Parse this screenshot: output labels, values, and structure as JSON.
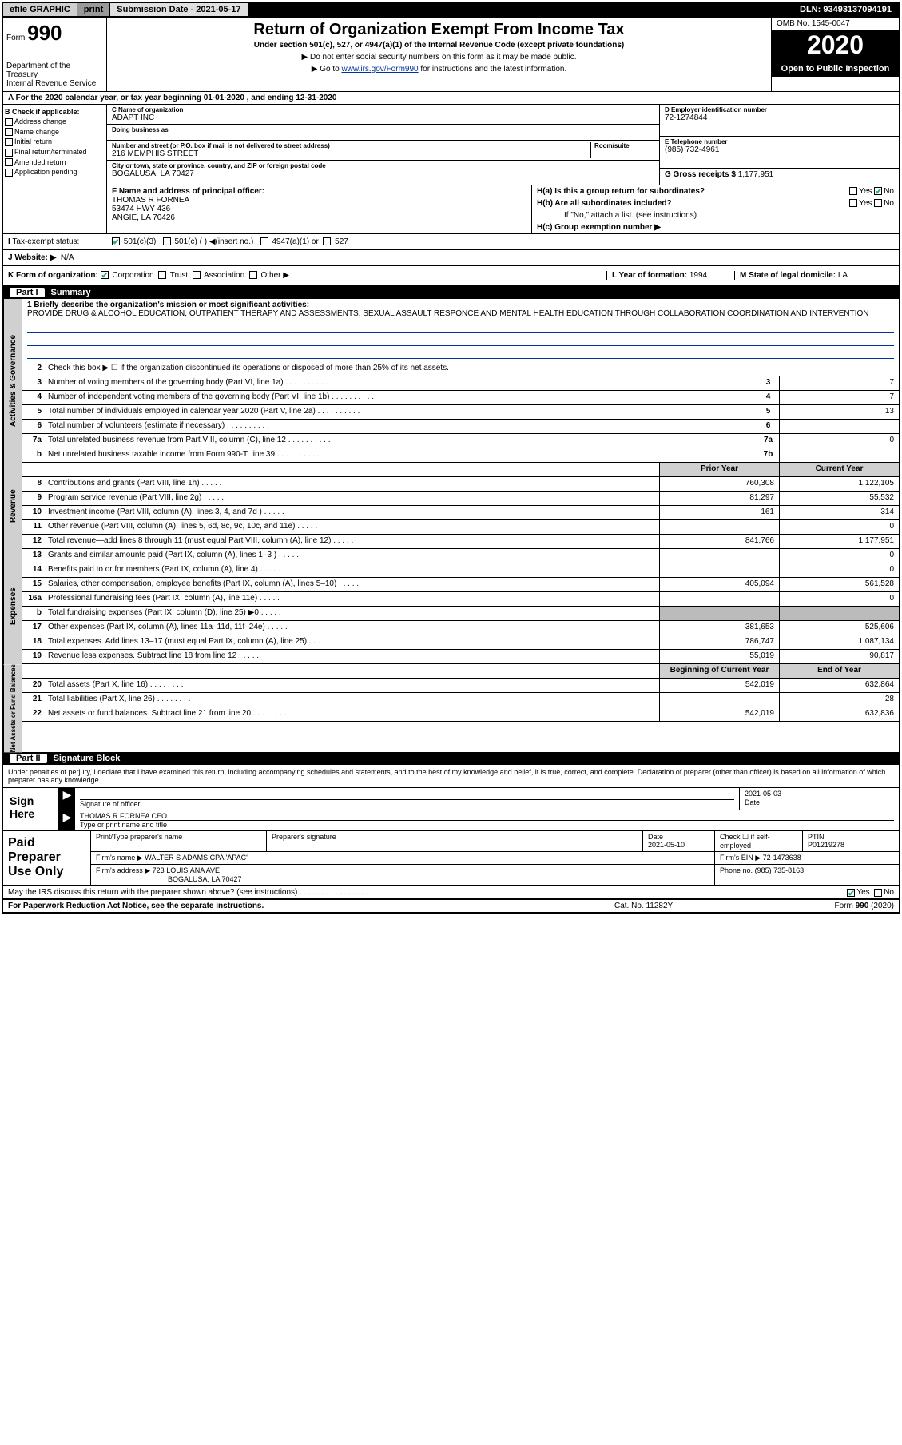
{
  "topbar": {
    "efile": "efile GRAPHIC",
    "print": "print",
    "subdate_label": "Submission Date - ",
    "subdate": "2021-05-17",
    "dln_label": "DLN: ",
    "dln": "93493137094191"
  },
  "header": {
    "form_label": "Form",
    "form_num": "990",
    "dept": "Department of the Treasury\nInternal Revenue Service",
    "title": "Return of Organization Exempt From Income Tax",
    "subtitle": "Under section 501(c), 527, or 4947(a)(1) of the Internal Revenue Code (except private foundations)",
    "instr1": "▶ Do not enter social security numbers on this form as it may be made public.",
    "instr2_pre": "▶ Go to ",
    "instr2_link": "www.irs.gov/Form990",
    "instr2_post": " for instructions and the latest information.",
    "omb": "OMB No. 1545-0047",
    "year": "2020",
    "open": "Open to Public Inspection"
  },
  "line_a": "A For the 2020 calendar year, or tax year beginning 01-01-2020     , and ending 12-31-2020",
  "section_b": {
    "label": "B Check if applicable:",
    "items": [
      "Address change",
      "Name change",
      "Initial return",
      "Final return/terminated",
      "Amended return",
      "Application pending"
    ]
  },
  "section_c": {
    "name_label": "C Name of organization",
    "name": "ADAPT INC",
    "dba_label": "Doing business as",
    "addr_label": "Number and street (or P.O. box if mail is not delivered to street address)",
    "room_label": "Room/suite",
    "addr": "216 MEMPHIS STREET",
    "city_label": "City or town, state or province, country, and ZIP or foreign postal code",
    "city": "BOGALUSA, LA  70427"
  },
  "section_d": {
    "ein_label": "D Employer identification number",
    "ein": "72-1274844",
    "phone_label": "E Telephone number",
    "phone": "(985) 732-4961"
  },
  "section_f": {
    "label": "F  Name and address of principal officer:",
    "name": "THOMAS R FORNEA",
    "addr1": "53474 HWY 436",
    "addr2": "ANGIE, LA  70426"
  },
  "section_g": {
    "label": "G Gross receipts $",
    "value": "1,177,951"
  },
  "section_h": {
    "ha": "H(a)  Is this a group return for subordinates?",
    "hb": "H(b)  Are all subordinates included?",
    "hb_note": "If \"No,\" attach a list. (see instructions)",
    "hc": "H(c)  Group exemption number ▶",
    "yes": "Yes",
    "no": "No"
  },
  "tax_status": {
    "label": "Tax-exempt status:",
    "opt1": "501(c)(3)",
    "opt2": "501(c) (  ) ◀(insert no.)",
    "opt3": "4947(a)(1) or",
    "opt4": "527"
  },
  "website": {
    "label": "J   Website: ▶",
    "value": "N/A"
  },
  "row_k": {
    "k_label": "K Form of organization:",
    "k_corp": "Corporation",
    "k_trust": "Trust",
    "k_assoc": "Association",
    "k_other": "Other ▶",
    "l_label": "L Year of formation:",
    "l_value": "1994",
    "m_label": "M State of legal domicile:",
    "m_value": "LA"
  },
  "part1": {
    "header": "Summary",
    "part_label": "Part I",
    "line1_label": "1  Briefly describe the organization's mission or most significant activities:",
    "mission": "PROVIDE DRUG & ALCOHOL EDUCATION, OUTPATIENT THERAPY AND ASSESSMENTS, SEXUAL ASSAULT RESPONCE AND MENTAL HEALTH EDUCATION THROUGH COLLABORATION COORDINATION AND INTERVENTION",
    "line2": "Check this box ▶ ☐  if the organization discontinued its operations or disposed of more than 25% of its net assets.",
    "sides": {
      "gov": "Activities & Governance",
      "rev": "Revenue",
      "exp": "Expenses",
      "net": "Net Assets or Fund Balances"
    },
    "col_prior": "Prior Year",
    "col_current": "Current Year",
    "col_begin": "Beginning of Current Year",
    "col_end": "End of Year",
    "rows_gov": [
      {
        "n": "3",
        "t": "Number of voting members of the governing body (Part VI, line 1a)",
        "box": "3",
        "v2": "7"
      },
      {
        "n": "4",
        "t": "Number of independent voting members of the governing body (Part VI, line 1b)",
        "box": "4",
        "v2": "7"
      },
      {
        "n": "5",
        "t": "Total number of individuals employed in calendar year 2020 (Part V, line 2a)",
        "box": "5",
        "v2": "13"
      },
      {
        "n": "6",
        "t": "Total number of volunteers (estimate if necessary)",
        "box": "6",
        "v2": ""
      },
      {
        "n": "7a",
        "t": "Total unrelated business revenue from Part VIII, column (C), line 12",
        "box": "7a",
        "v2": "0"
      },
      {
        "n": "b",
        "t": "Net unrelated business taxable income from Form 990-T, line 39",
        "box": "7b",
        "v2": ""
      }
    ],
    "rows_rev": [
      {
        "n": "8",
        "t": "Contributions and grants (Part VIII, line 1h)",
        "v1": "760,308",
        "v2": "1,122,105"
      },
      {
        "n": "9",
        "t": "Program service revenue (Part VIII, line 2g)",
        "v1": "81,297",
        "v2": "55,532"
      },
      {
        "n": "10",
        "t": "Investment income (Part VIII, column (A), lines 3, 4, and 7d )",
        "v1": "161",
        "v2": "314"
      },
      {
        "n": "11",
        "t": "Other revenue (Part VIII, column (A), lines 5, 6d, 8c, 9c, 10c, and 11e)",
        "v1": "",
        "v2": "0"
      },
      {
        "n": "12",
        "t": "Total revenue—add lines 8 through 11 (must equal Part VIII, column (A), line 12)",
        "v1": "841,766",
        "v2": "1,177,951"
      }
    ],
    "rows_exp": [
      {
        "n": "13",
        "t": "Grants and similar amounts paid (Part IX, column (A), lines 1–3 )",
        "v1": "",
        "v2": "0"
      },
      {
        "n": "14",
        "t": "Benefits paid to or for members (Part IX, column (A), line 4)",
        "v1": "",
        "v2": "0"
      },
      {
        "n": "15",
        "t": "Salaries, other compensation, employee benefits (Part IX, column (A), lines 5–10)",
        "v1": "405,094",
        "v2": "561,528"
      },
      {
        "n": "16a",
        "t": "Professional fundraising fees (Part IX, column (A), line 11e)",
        "v1": "",
        "v2": "0"
      },
      {
        "n": "b",
        "t": "Total fundraising expenses (Part IX, column (D), line 25) ▶0",
        "v1": "",
        "v2": "",
        "shade": true
      },
      {
        "n": "17",
        "t": "Other expenses (Part IX, column (A), lines 11a–11d, 11f–24e)",
        "v1": "381,653",
        "v2": "525,606"
      },
      {
        "n": "18",
        "t": "Total expenses. Add lines 13–17 (must equal Part IX, column (A), line 25)",
        "v1": "786,747",
        "v2": "1,087,134"
      },
      {
        "n": "19",
        "t": "Revenue less expenses. Subtract line 18 from line 12",
        "v1": "55,019",
        "v2": "90,817"
      }
    ],
    "rows_net": [
      {
        "n": "20",
        "t": "Total assets (Part X, line 16)",
        "v1": "542,019",
        "v2": "632,864"
      },
      {
        "n": "21",
        "t": "Total liabilities (Part X, line 26)",
        "v1": "",
        "v2": "28"
      },
      {
        "n": "22",
        "t": "Net assets or fund balances. Subtract line 21 from line 20",
        "v1": "542,019",
        "v2": "632,836"
      }
    ]
  },
  "part2": {
    "part_label": "Part II",
    "header": "Signature Block",
    "declaration": "Under penalties of perjury, I declare that I have examined this return, including accompanying schedules and statements, and to the best of my knowledge and belief, it is true, correct, and complete. Declaration of preparer (other than officer) is based on all information of which preparer has any knowledge.",
    "sign_here": "Sign Here",
    "sig_officer_label": "Signature of officer",
    "sig_date_label": "Date",
    "sig_date": "2021-05-03",
    "sig_name": "THOMAS R FORNEA  CEO",
    "sig_name_label": "Type or print name and title",
    "prep_label": "Paid Preparer Use Only",
    "prep_name_label": "Print/Type preparer's name",
    "prep_sig_label": "Preparer's signature",
    "prep_date": "2021-05-10",
    "prep_check": "Check ☐ if self-employed",
    "ptin_label": "PTIN",
    "ptin": "P01219278",
    "firm_name_label": "Firm's name     ▶",
    "firm_name": "WALTER S ADAMS CPA 'APAC'",
    "firm_ein_label": "Firm's EIN ▶",
    "firm_ein": "72-1473638",
    "firm_addr_label": "Firm's address ▶",
    "firm_addr1": "723 LOUISIANA AVE",
    "firm_addr2": "BOGALUSA, LA  70427",
    "firm_phone_label": "Phone no.",
    "firm_phone": "(985) 735-8163",
    "discuss": "May the IRS discuss this return with the preparer shown above? (see instructions)",
    "yes": "Yes",
    "no": "No"
  },
  "footer": {
    "left": "For Paperwork Reduction Act Notice, see the separate instructions.",
    "mid": "Cat. No. 11282Y",
    "right": "Form 990 (2020)"
  }
}
